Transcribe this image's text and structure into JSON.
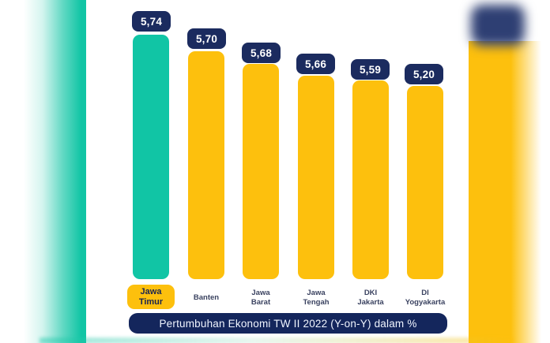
{
  "chart_data": {
    "type": "bar",
    "title": "Pertumbuhan Ekonomi TW II 2022 (Y-on-Y) dalam %",
    "unit": "%",
    "orientation": "vertical",
    "axes_visible": false,
    "data_labels": true,
    "legend": "none",
    "categories": [
      "Jawa Timur",
      "Banten",
      "Jawa Barat",
      "Jawa Tengah",
      "DKI Jakarta",
      "DI Yogyakarta"
    ],
    "values": [
      5.74,
      5.7,
      5.68,
      5.66,
      5.59,
      5.2
    ],
    "highlighted_category": "Jawa Timur",
    "bars": [
      {
        "category": "Jawa Timur",
        "cat_line1": "Jawa",
        "cat_line2": "Timur",
        "value": 5.74,
        "value_label": "5,74",
        "highlight": true
      },
      {
        "category": "Banten",
        "cat_line1": "Banten",
        "cat_line2": "",
        "value": 5.7,
        "value_label": "5,70",
        "highlight": false
      },
      {
        "category": "Jawa Barat",
        "cat_line1": "Jawa",
        "cat_line2": "Barat",
        "value": 5.68,
        "value_label": "5,68",
        "highlight": false
      },
      {
        "category": "Jawa Tengah",
        "cat_line1": "Jawa",
        "cat_line2": "Tengah",
        "value": 5.66,
        "value_label": "5,66",
        "highlight": false
      },
      {
        "category": "DKI Jakarta",
        "cat_line1": "DKI",
        "cat_line2": "Jakarta",
        "value": 5.59,
        "value_label": "5,59",
        "highlight": false
      },
      {
        "category": "DI Yogyakarta",
        "cat_line1": "DI",
        "cat_line2": "Yogyakarta",
        "value": 5.2,
        "value_label": "5,20",
        "highlight": false
      }
    ],
    "colors": {
      "highlight_bar": "#11C5A5",
      "default_bar": "#FDC00D",
      "value_chip_bg": "#1B2B5F",
      "value_chip_text": "#FFFFFF",
      "caption_bg": "#14265C",
      "caption_text": "#F0F5FF",
      "category_text": "#3A4260",
      "highlight_label_bg": "#FDC00D",
      "highlight_label_text": "#1A2550"
    }
  }
}
